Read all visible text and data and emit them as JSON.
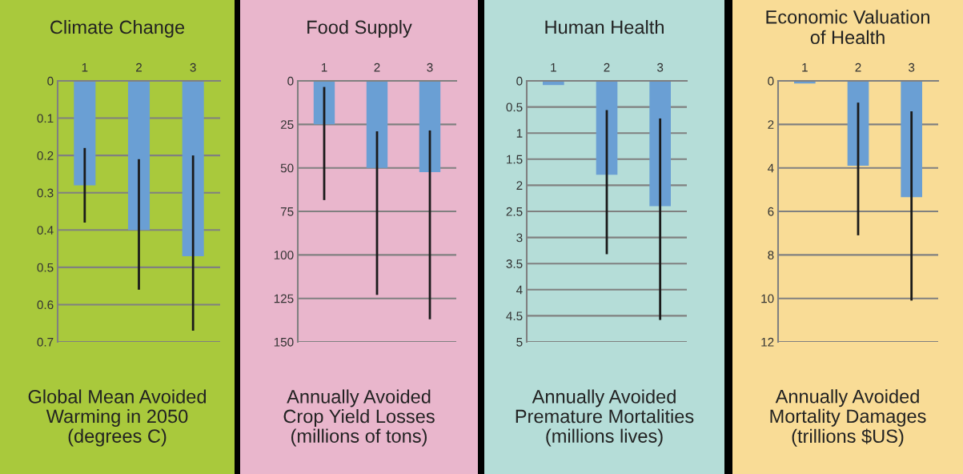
{
  "chart_data": [
    {
      "type": "bar",
      "title": "Climate Change",
      "xlabel": "Global Mean Avoided\nWarming in 2050\n(degrees C)",
      "categories": [
        "1",
        "2",
        "3"
      ],
      "values": [
        0.28,
        0.4,
        0.47
      ],
      "errors": [
        [
          0.18,
          0.38
        ],
        [
          0.21,
          0.56
        ],
        [
          0.2,
          0.67
        ]
      ],
      "color": "#6a9fd4",
      "ylim": [
        0.7,
        0
      ],
      "yticks": [
        0,
        0.1,
        0.2,
        0.3,
        0.4,
        0.5,
        0.6,
        0.7
      ],
      "grid": "y"
    },
    {
      "type": "bar",
      "title": "Food Supply",
      "xlabel": "Annually Avoided\nCrop Yield Losses\n(millions of tons)",
      "categories": [
        "1",
        "2",
        "3"
      ],
      "values": [
        25,
        50,
        52.5
      ],
      "errors": [
        [
          3.5,
          68.5
        ],
        [
          29,
          123
        ],
        [
          28.5,
          137
        ]
      ],
      "color": "#6a9fd4",
      "ylim": [
        150,
        0
      ],
      "yticks": [
        0,
        25,
        50,
        75,
        100,
        125,
        150
      ],
      "grid": "y"
    },
    {
      "type": "bar",
      "title": "Human Health",
      "xlabel": "Annually Avoided\nPremature Mortalities\n(millions lives)",
      "categories": [
        "1",
        "2",
        "3"
      ],
      "values": [
        0.08,
        1.8,
        2.4
      ],
      "errors": [
        null,
        [
          0.56,
          3.32
        ],
        [
          0.72,
          4.58
        ]
      ],
      "color": "#6a9fd4",
      "ylim": [
        5,
        0
      ],
      "yticks": [
        0,
        0.5,
        1,
        1.5,
        2,
        2.5,
        3,
        3.5,
        4,
        4.5,
        5
      ],
      "grid": "y"
    },
    {
      "type": "bar",
      "title": "Economic Valuation\nof Health",
      "xlabel": "Annually Avoided\nMortality Damages\n(trillions $US)",
      "categories": [
        "1",
        "2",
        "3"
      ],
      "values": [
        0.12,
        3.9,
        5.35
      ],
      "errors": [
        null,
        [
          1.0,
          7.1
        ],
        [
          1.4,
          10.1
        ]
      ],
      "color": "#6a9fd4",
      "ylim": [
        12,
        0
      ],
      "yticks": [
        0,
        2,
        4,
        6,
        8,
        10,
        12
      ],
      "grid": "y"
    }
  ]
}
